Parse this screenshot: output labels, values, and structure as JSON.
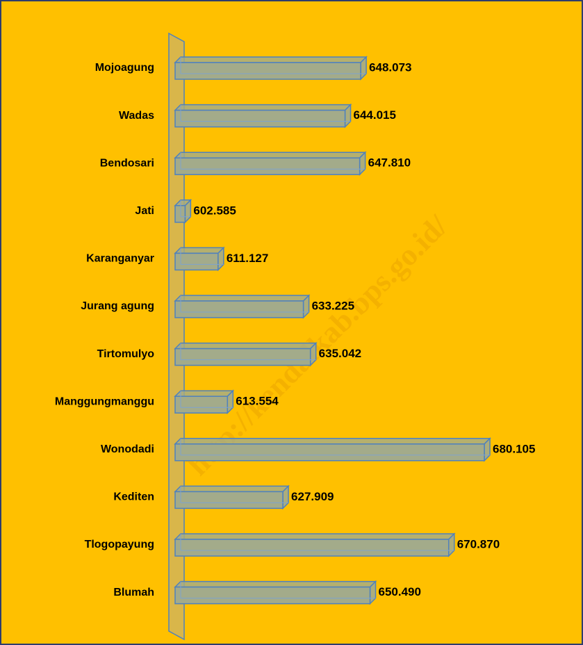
{
  "chart_data": {
    "type": "bar3d-horizontal",
    "categories": [
      "Mojoagung",
      "Wadas",
      "Bendosari",
      "Jati",
      "Karanganyar",
      "Jurang agung",
      "Tirtomulyo",
      "Manggungmanggu",
      "Wonodadi",
      "Kediten",
      "Tlogopayung",
      "Blumah"
    ],
    "values": [
      648073,
      644015,
      647810,
      602585,
      611127,
      633225,
      635042,
      613554,
      680105,
      627909,
      670870,
      650490
    ],
    "value_labels": [
      "648.073",
      "644.015",
      "647.810",
      "602.585",
      "611.127",
      "633.225",
      "635.042",
      "613.554",
      "680.105",
      "627.909",
      "670.870",
      "650.490"
    ],
    "color": "#a3ab8a",
    "xlim": [
      600000,
      690000
    ],
    "watermark": "http://kendalkab.bps.go.id/"
  }
}
